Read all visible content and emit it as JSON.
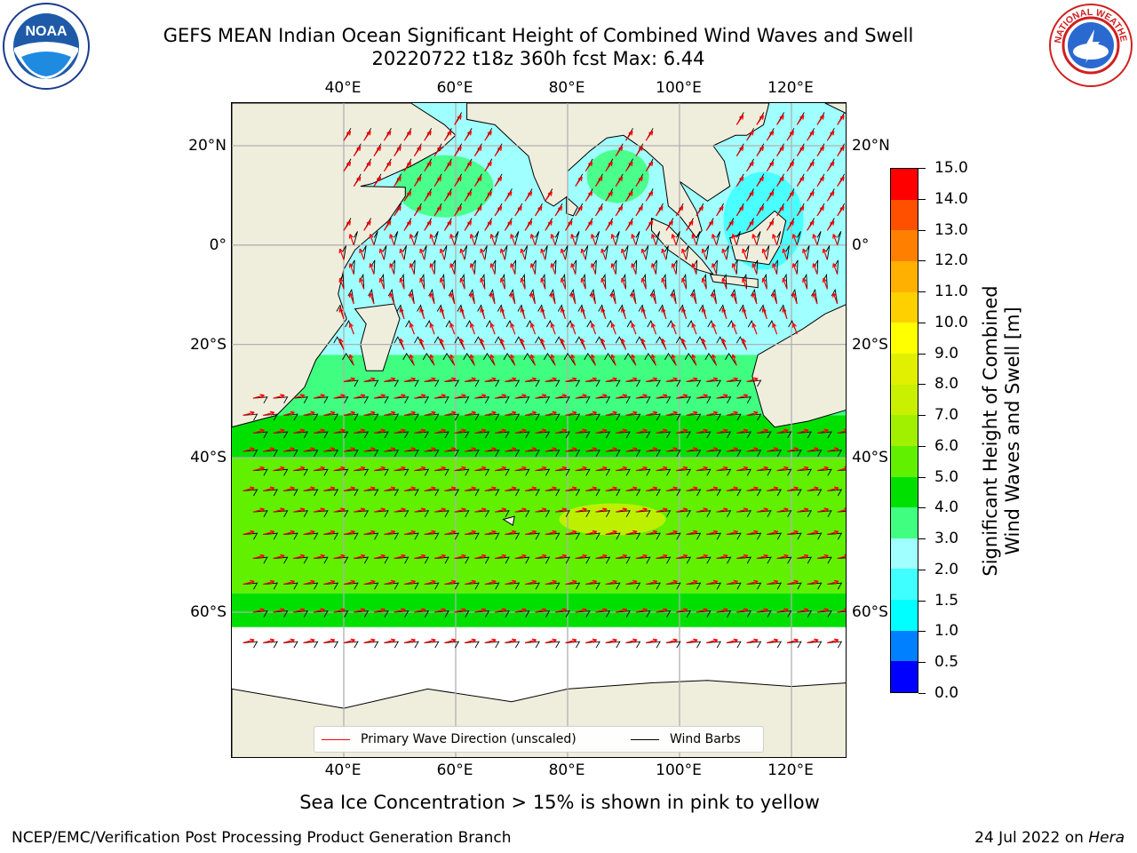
{
  "header": {
    "title_line1": "GEFS MEAN Indian Ocean Significant Height of Combined Wind Waves and Swell",
    "title_line2": "20220722 t18z 360h fcst   Max: 6.44"
  },
  "logos": {
    "left_text": "NOAA",
    "right_text": "NATIONAL WEATHER SERVICE"
  },
  "map": {
    "lon_ticks": [
      "40°E",
      "60°E",
      "80°E",
      "100°E",
      "120°E"
    ],
    "lat_ticks_left": [
      "20°N",
      "0°",
      "20°S",
      "40°S",
      "60°S"
    ],
    "lat_ticks_right": [
      "20°N",
      "0°",
      "20°S",
      "40°S",
      "60°S"
    ],
    "extent": {
      "lon": [
        20,
        130
      ],
      "lat": [
        -72,
        28
      ]
    },
    "colors": {
      "land": "#efeedd",
      "ice": "#ffffff",
      "grid": "#b0b0b0",
      "wave_arrow": "#ff0000",
      "wind_barb": "#000000"
    }
  },
  "legend": {
    "wave_label": "Primary Wave Direction (unscaled)",
    "wind_label": "Wind Barbs"
  },
  "colorbar": {
    "label_line1": "Significant Height of Combined",
    "label_line2": "Wind Waves and Swell [m]",
    "ticks": [
      "0.0",
      "0.5",
      "1.0",
      "1.5",
      "2.0",
      "3.0",
      "4.0",
      "5.0",
      "6.0",
      "7.0",
      "8.0",
      "9.0",
      "10.0",
      "11.0",
      "12.0",
      "13.0",
      "14.0",
      "15.0"
    ],
    "colors": [
      "#0000ff",
      "#0080ff",
      "#00ffff",
      "#40ffff",
      "#a0ffff",
      "#40ff80",
      "#00e000",
      "#60f000",
      "#a0f000",
      "#c8f000",
      "#e0f000",
      "#ffff00",
      "#ffd000",
      "#ffb000",
      "#ff8000",
      "#ff5000",
      "#ff0000"
    ]
  },
  "subcaption": "Sea Ice Concentration > 15% is shown in pink to yellow",
  "footer": {
    "left": "NCEP/EMC/Verification Post Processing Product Generation Branch",
    "right_date": "24 Jul 2022 on ",
    "right_host": "Hera"
  }
}
